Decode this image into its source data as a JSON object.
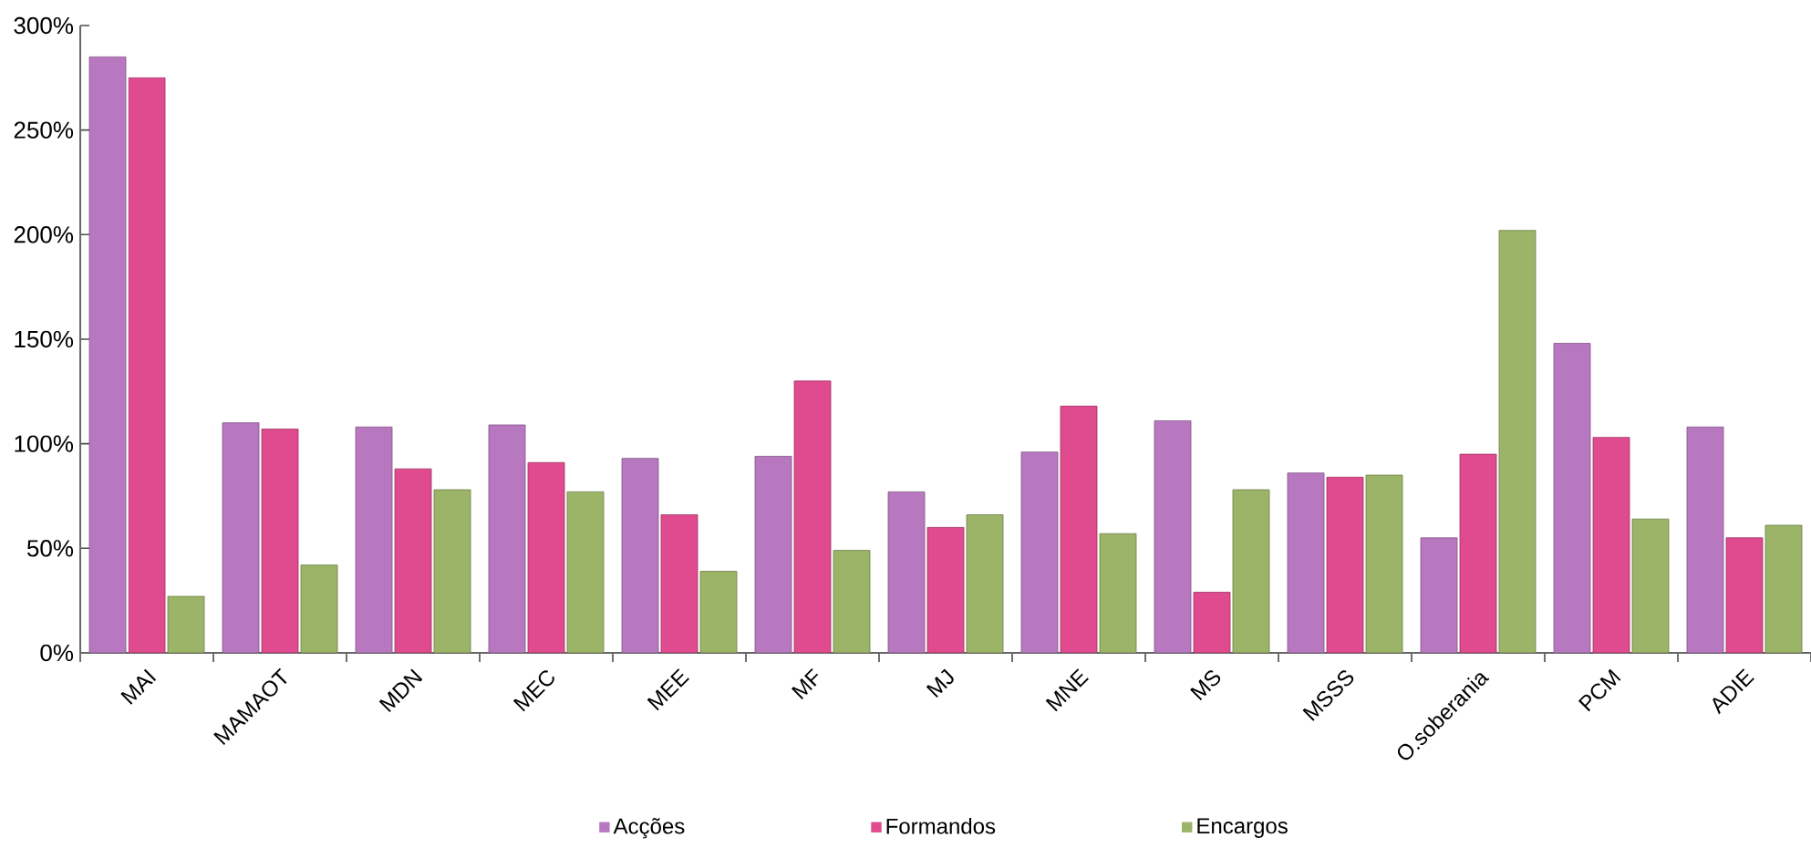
{
  "chart_data": {
    "type": "bar",
    "categories": [
      "MAI",
      "MAMAOT",
      "MDN",
      "MEC",
      "MEE",
      "MF",
      "MJ",
      "MNE",
      "MS",
      "MSSS",
      "O.soberania",
      "PCM",
      "ADIE"
    ],
    "series": [
      {
        "name": "Acções",
        "color": "#b878c0",
        "values": [
          285,
          110,
          108,
          109,
          93,
          94,
          77,
          96,
          111,
          86,
          55,
          148,
          108
        ]
      },
      {
        "name": "Formandos",
        "color": "#e04a8e",
        "values": [
          275,
          107,
          88,
          91,
          66,
          130,
          60,
          118,
          29,
          84,
          95,
          103,
          55
        ]
      },
      {
        "name": "Encargos",
        "color": "#9cb468",
        "values": [
          27,
          42,
          78,
          77,
          39,
          49,
          66,
          57,
          78,
          85,
          202,
          64,
          61
        ]
      }
    ],
    "ylim": [
      0,
      300
    ],
    "yticks": [
      {
        "value": 0,
        "label": "0%"
      },
      {
        "value": 50,
        "label": "50%"
      },
      {
        "value": 100,
        "label": "100%"
      },
      {
        "value": 150,
        "label": "150%"
      },
      {
        "value": 200,
        "label": "200%"
      },
      {
        "value": 250,
        "label": "250%"
      },
      {
        "value": 300,
        "label": "300%"
      }
    ],
    "grid": false,
    "legend": "bottom"
  }
}
